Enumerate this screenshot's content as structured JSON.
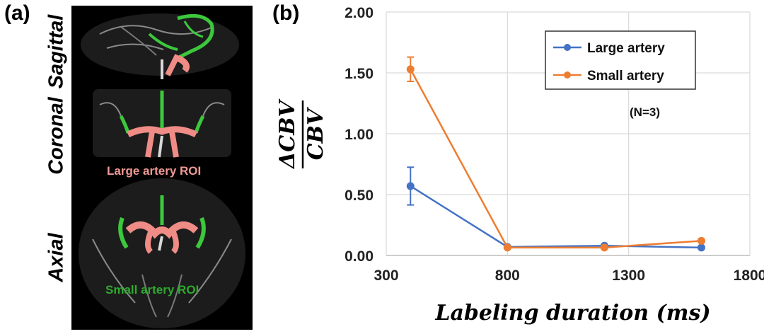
{
  "panel_a": {
    "label": "(a)",
    "views": [
      "Sagittal",
      "Coronal",
      "Axial"
    ],
    "large_roi_label": "Large artery ROI",
    "small_roi_label": "Small artery ROI",
    "colors": {
      "large_roi": "#f08c86",
      "small_roi": "#3cc83c",
      "vessel": "#9a9a9a"
    }
  },
  "panel_b": {
    "label": "(b)"
  },
  "chart_data": {
    "type": "line",
    "title": "",
    "xlabel": "Labeling duration (ms)",
    "ylabel_numerator": "ΔCBV",
    "ylabel_denominator": "CBV",
    "xlim": [
      300,
      1800
    ],
    "ylim": [
      0,
      2
    ],
    "xticks": [
      300,
      800,
      1300,
      1800
    ],
    "xtick_labels": [
      "300",
      "800",
      "1300",
      "1800"
    ],
    "yticks": [
      0,
      0.5,
      1,
      1.5,
      2
    ],
    "ytick_labels": [
      "0.00",
      "0.50",
      "1.00",
      "1.50",
      "2.00"
    ],
    "grid": true,
    "legend_position": "top-right",
    "annotation": "(N=3)",
    "series": [
      {
        "name": "Large artery",
        "color": "#4472c4",
        "x": [
          400,
          800,
          1200,
          1600
        ],
        "values": [
          0.57,
          0.07,
          0.08,
          0.065
        ],
        "errors": [
          0.155,
          0.01,
          0.01,
          0.01
        ]
      },
      {
        "name": "Small artery",
        "color": "#ed7d31",
        "x": [
          400,
          800,
          1200,
          1600
        ],
        "values": [
          1.53,
          0.065,
          0.065,
          0.12
        ],
        "errors": [
          0.1,
          0.01,
          0.01,
          0.015
        ]
      }
    ]
  }
}
